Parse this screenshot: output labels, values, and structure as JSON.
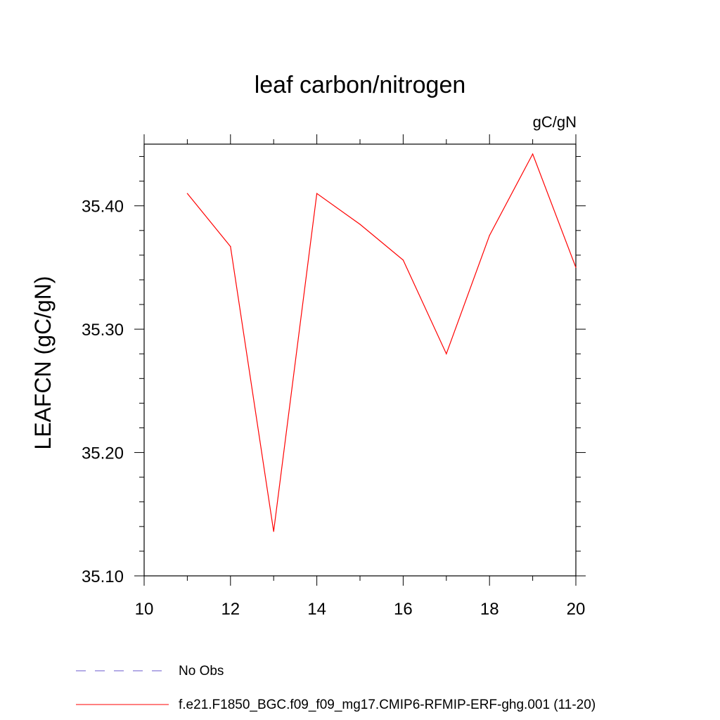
{
  "chart_data": {
    "type": "line",
    "title": "leaf carbon/nitrogen",
    "units": "gC/gN",
    "ylabel": "LEAFCN  (gC/gN)",
    "xlabel": "",
    "xlim": [
      10,
      20
    ],
    "ylim": [
      35.1,
      35.45
    ],
    "xticks": [
      "10",
      "12",
      "14",
      "16",
      "18",
      "20"
    ],
    "yticks": [
      "35.10",
      "35.20",
      "35.30",
      "35.40"
    ],
    "grid": false,
    "legend_placement": "bottom-left",
    "series": [
      {
        "name": "f.e21.F1850_BGC.f09_f09_mg17.CMIP6-RFMIP-ERF-ghg.001 (11-20)",
        "color": "#ff0000",
        "style": "solid",
        "x": [
          11,
          12,
          13,
          14,
          15,
          16,
          17,
          18,
          19,
          20
        ],
        "y": [
          35.41,
          35.367,
          35.136,
          35.41,
          35.385,
          35.356,
          35.28,
          35.376,
          35.442,
          35.35
        ]
      }
    ],
    "legend": [
      {
        "label": "No Obs",
        "color": "#6a5acd",
        "style": "dashed"
      },
      {
        "label": "f.e21.F1850_BGC.f09_f09_mg17.CMIP6-RFMIP-ERF-ghg.001 (11-20)",
        "color": "#ff0000",
        "style": "solid"
      }
    ]
  }
}
